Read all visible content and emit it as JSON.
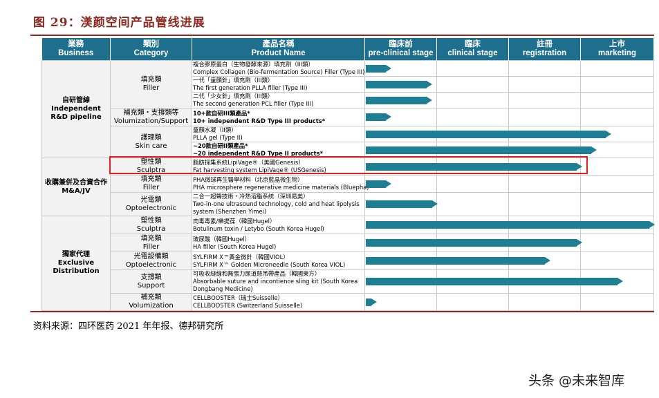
{
  "figure": {
    "title": "图 29：渼颜空间产品管线进展",
    "source": "资料来源：四环医药 2021 年年报、德邦研究所",
    "watermark": "头条 @未来智库"
  },
  "headers": [
    {
      "cn": "業務",
      "en": "Business"
    },
    {
      "cn": "類別",
      "en": "Category"
    },
    {
      "cn": "產品名稱",
      "en": "Product Name"
    },
    {
      "cn": "臨床前",
      "en": "pre-clinical stage"
    },
    {
      "cn": "臨床",
      "en": "clinical stage"
    },
    {
      "cn": "註冊",
      "en": "registration"
    },
    {
      "cn": "上市",
      "en": "marketing"
    }
  ],
  "businesses": [
    {
      "cn": "自研管線",
      "en": "Independent R&D pipeline"
    },
    {
      "cn": "收購兼併及合資合作",
      "en": "M&A/JV"
    },
    {
      "cn": "獨家代理",
      "en": "Exclusive Distribution"
    }
  ],
  "categories": [
    {
      "cn": "填充類",
      "en": "Filler"
    },
    {
      "cn": "補充類・支撐類等",
      "en": "Volumization/Support"
    },
    {
      "cn": "護理類",
      "en": "Skin care"
    },
    {
      "cn": "塑性類",
      "en": "Sculptra"
    },
    {
      "cn": "填充類",
      "en": "Filler"
    },
    {
      "cn": "光電類",
      "en": "Optoelectronic"
    },
    {
      "cn": "塑性類",
      "en": "Sculptra"
    },
    {
      "cn": "填充類",
      "en": "Filler"
    },
    {
      "cn": "光電設備類",
      "en": "Optoelectronic"
    },
    {
      "cn": "支撐類",
      "en": "Support"
    },
    {
      "cn": "補充類",
      "en": "Volumization"
    }
  ],
  "products": [
    {
      "cn": "複合膠原蛋白（生物發酵來源）填充劑（III類）",
      "en": "Complex Collagen (Bio-fermentation Source) Filler (Type III)",
      "progress": 0.09
    },
    {
      "cn": "一代「童顏針」填充劑（III類）",
      "en": "The first generation PLLA filler (Type III)",
      "progress": 0.23
    },
    {
      "cn": "二代「少女針」填充劑（III類）",
      "en": "The second generation PCL filler (Type III)",
      "progress": 0.23
    },
    {
      "cn": "10+款自研III類產品*",
      "en": "10+ independent R&D Type III products*",
      "progress": 0.09
    },
    {
      "cn": "童顏水凝（II類）",
      "en": "PLLA gel (Type II)",
      "progress": 0.85
    },
    {
      "cn": "~20款自研II類產品*",
      "en": "~20 independent R&D Type II products*",
      "progress": 0.8
    },
    {
      "cn": "脂肪採集系統LipiVage®（美國Genesis）",
      "en": "Fat harvesting system LipiVage® (USGenesis)",
      "progress": 0.75
    },
    {
      "cn": "PHA微球再生醫學材料（北京藍晶微生物）",
      "en": "PHA microsphere regenerative medicine materials (Bluepha)",
      "progress": 0.09
    },
    {
      "cn": "二合一超聲技術・冷熱溶脂系統（深圳易美）",
      "en": "Two-in-one ultrasound technology, cold and heat lipolysis system (Shenzhen Yimei)",
      "progress": 0.25
    },
    {
      "cn": "肉毒毒素/樂提葆（韓國Hugel）",
      "en": "Botulinum toxin / Letybo (South Korea Hugel)",
      "progress": 1.0
    },
    {
      "cn": "玻尿酸（韓國Hugel）",
      "en": "HA filler (South Korea Hugel)",
      "progress": 0.75
    },
    {
      "cn": "SYLFIRM X™黃金微針（韓國VIOL）",
      "en": "SYLFIRM X™ Golden Microneedle (South Korea VIOL)",
      "progress": 0.64
    },
    {
      "cn": "可吸收縫線和無張力尿道懸吊帶產品（韓國東方）",
      "en": "Absorbable suture and incontience sling kit (South Korea Dongbang Medicine)",
      "progress": 0.89
    },
    {
      "cn": "CELLBOOSTER（瑞士Suisselle）",
      "en": "CELLBOOSTER (Switzerland Suisselle)",
      "progress": 0.04
    }
  ],
  "colors": {
    "header": "#1e6f8e",
    "bar": "#1e7f94",
    "title": "#8a2a20",
    "highlight": "#e02020"
  }
}
